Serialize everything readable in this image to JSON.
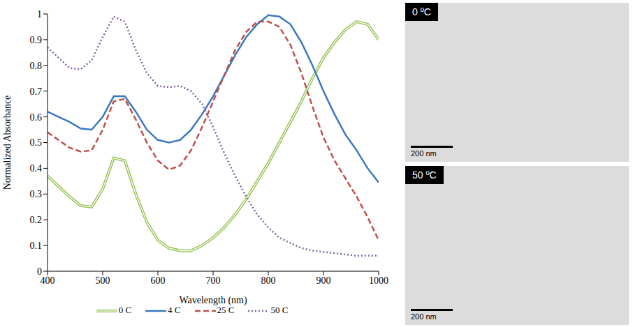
{
  "chart_data": {
    "type": "line",
    "x_label": "Wavelength (nm)",
    "y_label": "Normalized Absorbance",
    "x": [
      400,
      420,
      440,
      460,
      480,
      500,
      520,
      540,
      560,
      580,
      600,
      620,
      640,
      660,
      680,
      700,
      720,
      740,
      760,
      780,
      800,
      820,
      840,
      860,
      880,
      900,
      920,
      940,
      960,
      980,
      1000
    ],
    "series": [
      {
        "name": "0 C",
        "color": "#92c050",
        "line_style": "double",
        "values": [
          0.37,
          0.33,
          0.29,
          0.255,
          0.25,
          0.32,
          0.44,
          0.43,
          0.3,
          0.19,
          0.12,
          0.09,
          0.08,
          0.08,
          0.1,
          0.13,
          0.17,
          0.22,
          0.28,
          0.35,
          0.42,
          0.5,
          0.58,
          0.66,
          0.75,
          0.83,
          0.89,
          0.94,
          0.97,
          0.96,
          0.9
        ]
      },
      {
        "name": "4 C",
        "color": "#3b78c0",
        "line_style": "solid",
        "values": [
          0.62,
          0.6,
          0.58,
          0.555,
          0.55,
          0.6,
          0.68,
          0.68,
          0.62,
          0.55,
          0.51,
          0.5,
          0.51,
          0.55,
          0.61,
          0.68,
          0.76,
          0.84,
          0.91,
          0.96,
          0.995,
          0.99,
          0.96,
          0.89,
          0.8,
          0.7,
          0.61,
          0.53,
          0.47,
          0.4,
          0.345
        ]
      },
      {
        "name": "25 C",
        "color": "#c0504d",
        "line_style": "dashed",
        "values": [
          0.54,
          0.51,
          0.48,
          0.465,
          0.47,
          0.55,
          0.66,
          0.67,
          0.59,
          0.5,
          0.43,
          0.395,
          0.41,
          0.47,
          0.56,
          0.66,
          0.76,
          0.86,
          0.93,
          0.97,
          0.97,
          0.95,
          0.88,
          0.77,
          0.64,
          0.52,
          0.43,
          0.36,
          0.29,
          0.21,
          0.12
        ]
      },
      {
        "name": "50 C",
        "color": "#8064a2",
        "line_style": "dotted",
        "values": [
          0.87,
          0.83,
          0.79,
          0.785,
          0.82,
          0.91,
          0.99,
          0.97,
          0.86,
          0.77,
          0.72,
          0.715,
          0.72,
          0.7,
          0.65,
          0.56,
          0.46,
          0.37,
          0.29,
          0.22,
          0.17,
          0.13,
          0.11,
          0.09,
          0.08,
          0.075,
          0.07,
          0.065,
          0.06,
          0.06,
          0.06
        ]
      }
    ],
    "xlim": [
      400,
      1000
    ],
    "xticks": [
      400,
      500,
      600,
      700,
      800,
      900,
      1000
    ],
    "ylim": [
      0,
      1
    ],
    "yticks": [
      0,
      0.1,
      0.2,
      0.3,
      0.4,
      0.5,
      0.6,
      0.7,
      0.8,
      0.9,
      1
    ],
    "grid": false,
    "legend": "bottom"
  },
  "panels": [
    {
      "label": "0 ºC",
      "scale_bar": "200 nm"
    },
    {
      "label": "50 ºC",
      "scale_bar": "200 nm"
    }
  ]
}
